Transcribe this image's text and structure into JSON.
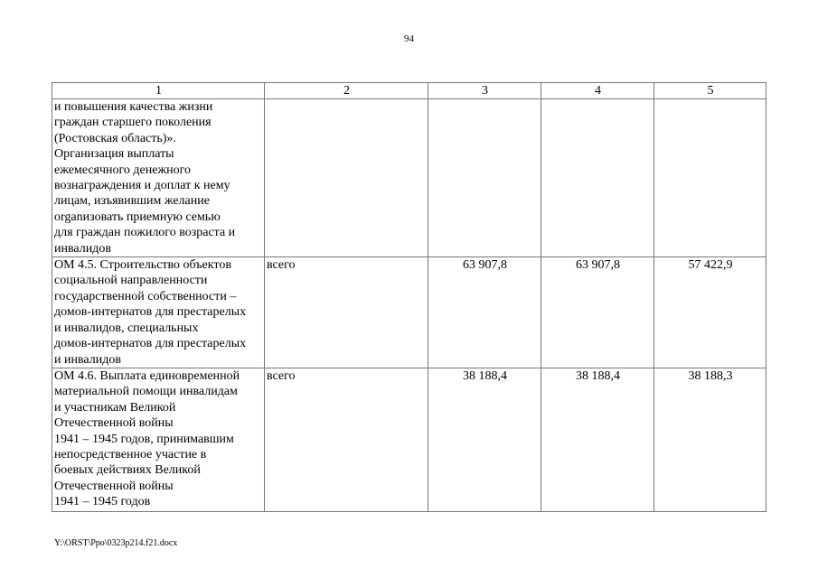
{
  "page_number": "94",
  "table": {
    "headers": [
      "1",
      "2",
      "3",
      "4",
      "5"
    ],
    "rows": [
      {
        "name": "и повышения качества жизни\nграждан старшего поколения\n(Ростовская область)».\nОрганизация выплаты\nежемесячного денежного\nвознаграждения и доплат к нему\nлицам, изъявившим желание\norganизовать приемную семью\nдля граждан пожилого возраста и\nинвалидов",
        "source": "",
        "v3": "",
        "v4": "",
        "v5": ""
      },
      {
        "name": "ОМ 4.5. Строительство объектов\nсоциальной направленности\nгосударственной собственности –\nдомов-интернатов для престарелых\nи инвалидов, специальных\nдомов-интернатов для престарелых\nи инвалидов",
        "source": "всего",
        "v3": "63 907,8",
        "v4": "63 907,8",
        "v5": "57 422,9"
      },
      {
        "name": "ОМ 4.6. Выплата единовременной\nматериальной помощи инвалидам\nи участникам Великой\nОтечественной войны\n1941 – 1945 годов, принимавшим\nнепосредственное участие в\nбоевых действиях Великой\nОтечественной войны\n1941 – 1945 годов",
        "source": "всего",
        "v3": "38 188,4",
        "v4": "38 188,4",
        "v5": "38 188,3"
      }
    ]
  },
  "footer_path": "Y:\\ORST\\Ppo\\0323p214.f21.docx"
}
